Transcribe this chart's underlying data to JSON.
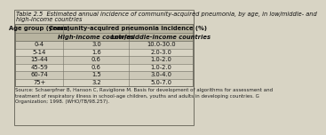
{
  "title_line1": "Table 2.5  Estimated annual incidence of community-acquired pneumonia, by age, in low/middle- and",
  "title_line2": "high-income countries",
  "col_header_1": "Age group (years)",
  "col_header_2": "Community-acquired pneumonia incidence (%)",
  "col_header_2a": "High-income countries",
  "col_header_2b": "Low/middle-income countries",
  "rows": [
    [
      "0-4",
      "3.0",
      "10.0-30.0"
    ],
    [
      "5-14",
      "1.6",
      "2.0-3.0"
    ],
    [
      "15-44",
      "0.6",
      "1.0-2.0"
    ],
    [
      "45-59",
      "0.6",
      "1.0-2.0"
    ],
    [
      "60-74",
      "1.5",
      "3.0-4.0"
    ],
    [
      "75+",
      "3.2",
      "5.0-7.0"
    ]
  ],
  "footnote": "Source: Schaerpfner B, Hanson C, Raviglione M. Basis for development of algorithms for assessment and\ntreatment of respiratory illness in school-age children, youths and adults in developing countries. G\nOrganization; 1998. (WHO/TB/98.257).",
  "bg_color": "#d8d4c4",
  "header_bg": "#b8b4a0",
  "row_bg_even": "#ccc8b8",
  "row_bg_odd": "#d8d4c4",
  "border_color": "#706e62",
  "title_fontsize": 4.8,
  "header_fontsize": 4.9,
  "cell_fontsize": 4.9,
  "footnote_fontsize": 4.0
}
